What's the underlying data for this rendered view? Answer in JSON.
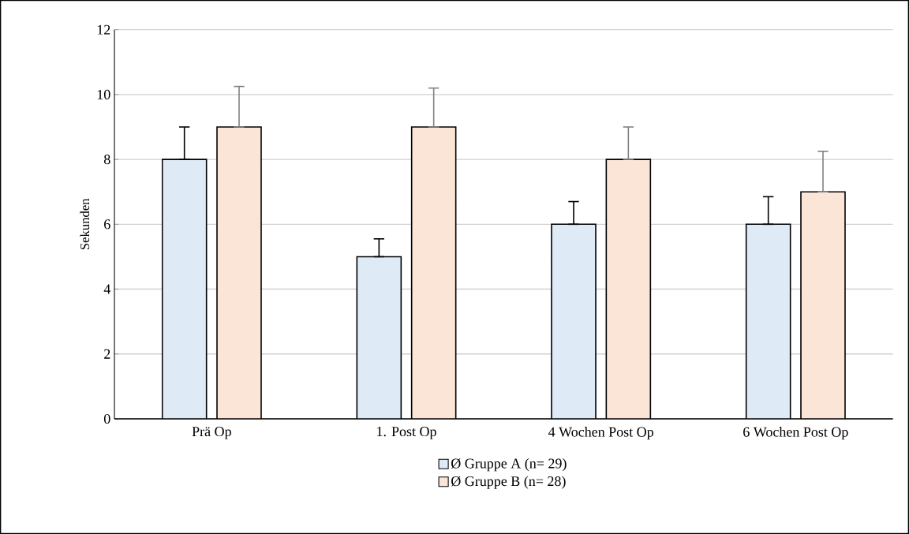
{
  "chart_data": {
    "type": "bar",
    "ylabel": "Sekunden",
    "categories": [
      "Prä Op",
      "1. Post Op",
      "4 Wochen Post Op",
      "6 Wochen Post Op"
    ],
    "series": [
      {
        "name": "Ø Gruppe A (n= 29)",
        "color": "#deebf7",
        "values": [
          8,
          5,
          6,
          6
        ],
        "errors": [
          [
            8,
            9.0
          ],
          [
            5,
            5.55
          ],
          [
            6,
            6.7
          ],
          [
            6,
            6.85
          ]
        ]
      },
      {
        "name": "Ø Gruppe B (n= 28)",
        "color": "#fbe5d6",
        "values": [
          9,
          9,
          8,
          7
        ],
        "errors": [
          [
            9,
            10.25
          ],
          [
            9,
            10.2
          ],
          [
            8,
            9.0
          ],
          [
            7,
            8.25
          ]
        ]
      }
    ],
    "ylim": [
      0,
      12
    ],
    "yticks": [
      0,
      2,
      4,
      6,
      8,
      10,
      12
    ],
    "grid": "y",
    "legend": "bottom"
  }
}
